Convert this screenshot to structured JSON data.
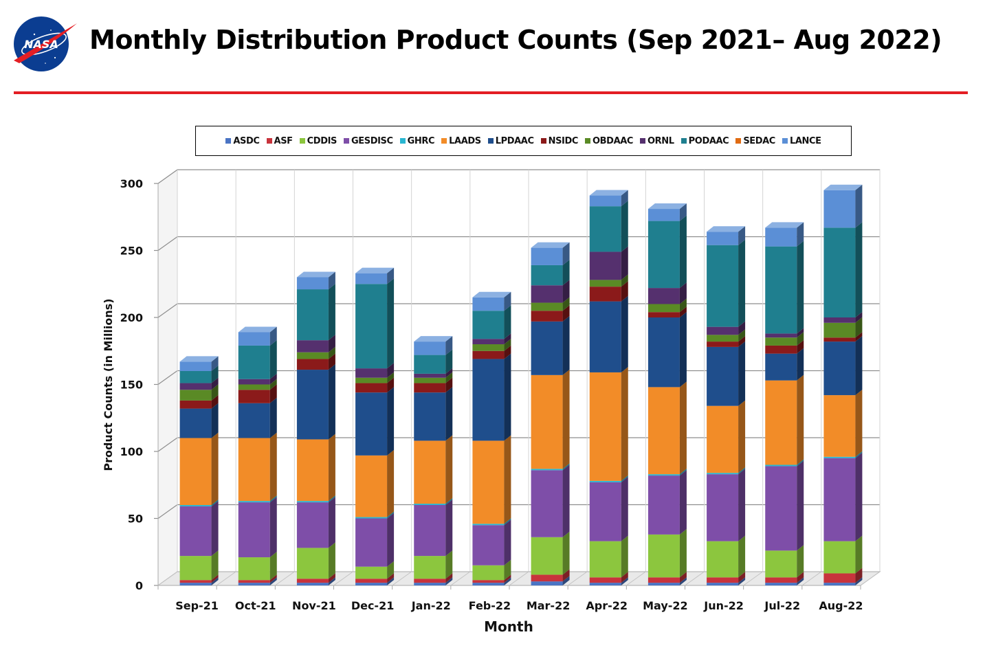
{
  "header": {
    "title": "Monthly Distribution Product Counts (Sep 2021– Aug 2022)",
    "logo_text": "NASA",
    "rule_color": "#e31e24"
  },
  "colors": {
    "ASDC": "#4a74c4",
    "ASF": "#c8333c",
    "CDDIS": "#8cc63e",
    "GESDISC": "#7e4ea8",
    "GHRC": "#29b6d1",
    "LAADS": "#f28c28",
    "LPDAAC": "#1f4e8c",
    "NSIDC": "#8b1a1a",
    "OBDAAC": "#5a8a25",
    "ORNL": "#55306e",
    "PODAAC": "#1f7f8f",
    "SEDAC": "#e06b12",
    "LANCE": "#5b8fd6"
  },
  "chart_data": {
    "type": "bar",
    "stacked": true,
    "three_d": true,
    "title": "",
    "xlabel": "Month",
    "ylabel": "Product Counts (in Millions)",
    "ylim": [
      0,
      300
    ],
    "yticks": [
      0,
      50,
      100,
      150,
      200,
      250,
      300
    ],
    "grid": true,
    "legend_position": "top",
    "categories": [
      "Sep-21",
      "Oct-21",
      "Nov-21",
      "Dec-21",
      "Jan-22",
      "Feb-22",
      "Mar-22",
      "Apr-22",
      "May-22",
      "Jun-22",
      "Jul-22",
      "Aug-22"
    ],
    "series": [
      {
        "name": "ASDC",
        "values": [
          2,
          2,
          2,
          2,
          2,
          2,
          3,
          2,
          2,
          2,
          2,
          2
        ]
      },
      {
        "name": "ASF",
        "values": [
          2,
          2,
          3,
          3,
          3,
          2,
          5,
          4,
          4,
          4,
          4,
          7
        ]
      },
      {
        "name": "CDDIS",
        "values": [
          18,
          17,
          23,
          9,
          17,
          11,
          28,
          27,
          32,
          27,
          20,
          24
        ]
      },
      {
        "name": "GESDISC",
        "values": [
          37,
          41,
          34,
          36,
          38,
          30,
          50,
          44,
          44,
          50,
          63,
          62
        ]
      },
      {
        "name": "GHRC",
        "values": [
          1,
          1,
          1,
          1,
          1,
          1,
          1,
          1,
          1,
          1,
          1,
          1
        ]
      },
      {
        "name": "LAADS",
        "values": [
          50,
          47,
          46,
          46,
          47,
          62,
          70,
          81,
          65,
          50,
          63,
          46
        ]
      },
      {
        "name": "LPDAAC",
        "values": [
          22,
          26,
          52,
          47,
          36,
          61,
          40,
          53,
          52,
          44,
          20,
          40
        ]
      },
      {
        "name": "NSIDC",
        "values": [
          6,
          10,
          8,
          7,
          7,
          6,
          8,
          11,
          4,
          4,
          6,
          3
        ]
      },
      {
        "name": "OBDAAC",
        "values": [
          8,
          4,
          5,
          4,
          4,
          5,
          6,
          5,
          6,
          5,
          6,
          11
        ]
      },
      {
        "name": "ORNL",
        "values": [
          5,
          4,
          9,
          7,
          3,
          4,
          13,
          21,
          12,
          6,
          3,
          4
        ]
      },
      {
        "name": "PODAAC",
        "values": [
          9,
          25,
          38,
          63,
          14,
          21,
          15,
          34,
          50,
          61,
          65,
          67
        ]
      },
      {
        "name": "SEDAC",
        "values": [
          0,
          0,
          0,
          0,
          0,
          0,
          0,
          0,
          0,
          0,
          0,
          0
        ]
      },
      {
        "name": "LANCE",
        "values": [
          7,
          10,
          9,
          8,
          10,
          10,
          13,
          8,
          9,
          10,
          14,
          28
        ]
      }
    ]
  }
}
